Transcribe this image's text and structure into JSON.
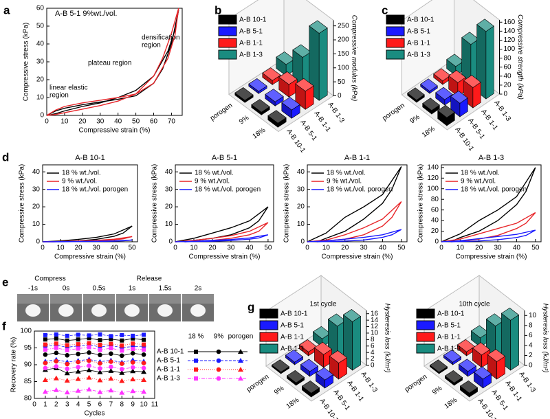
{
  "chart_data": [
    {
      "type": "line",
      "label": "a",
      "title": "A-B 5-1 9%wt./vol.",
      "xlabel": "Compressive strain (%)",
      "ylabel": "Compressive stress (kPa)",
      "xlim": [
        0,
        76
      ],
      "xticks": [
        0,
        10,
        20,
        30,
        40,
        50,
        60,
        70
      ],
      "ylim": [
        0,
        60
      ],
      "yticks": [
        0,
        10,
        20,
        30,
        40,
        50,
        60
      ],
      "annotations": [
        [
          "linear elastic",
          "region"
        ],
        [
          "plateau region"
        ],
        [
          "densification",
          "region"
        ]
      ],
      "x": [
        0,
        5,
        10,
        20,
        30,
        40,
        50,
        60,
        65,
        70,
        74,
        72,
        68,
        60,
        50,
        40,
        30,
        20,
        10,
        5,
        2,
        0
      ],
      "series": [
        {
          "color": "#000000",
          "values": [
            0,
            2.5,
            4,
            6,
            7.5,
            9,
            11,
            18,
            26,
            40,
            59,
            48,
            36,
            22,
            14,
            10,
            7,
            5,
            2.5,
            1,
            0.3,
            0
          ]
        },
        {
          "color": "#e8262a",
          "values": [
            0,
            3,
            5,
            7,
            8.5,
            10,
            12,
            22,
            32,
            46,
            60,
            45,
            32,
            18,
            12,
            8,
            5.5,
            3.5,
            1.5,
            0.5,
            0.2,
            0
          ]
        }
      ]
    },
    {
      "type": "bar3d",
      "label": "b",
      "ylabel": "Compressive modulus (kPa)",
      "categories": [
        "porogen",
        "9%",
        "18%"
      ],
      "ylim": [
        0,
        270
      ],
      "yticks": [
        0,
        50,
        100,
        150,
        200,
        250
      ],
      "series": [
        {
          "name": "A-B 10-1",
          "color": "#000000",
          "values": [
            8,
            10,
            15
          ]
        },
        {
          "name": "A-B 5-1",
          "color": "#1a1aff",
          "values": [
            8,
            15,
            30
          ]
        },
        {
          "name": "A-B 1-1",
          "color": "#ff1a1a",
          "values": [
            15,
            45,
            65
          ]
        },
        {
          "name": "A-B 1-3",
          "color": "#1a8c80",
          "values": [
            40,
            110,
            240
          ]
        }
      ]
    },
    {
      "type": "bar3d",
      "label": "c",
      "ylabel": "Compressive strength (kPa)",
      "categories": [
        "porogen",
        "9%",
        "18%"
      ],
      "ylim": [
        0,
        165
      ],
      "yticks": [
        0,
        20,
        40,
        60,
        80,
        100,
        120,
        140,
        160
      ],
      "series": [
        {
          "name": "A-B 10-1",
          "color": "#000000",
          "values": [
            5,
            8,
            18
          ]
        },
        {
          "name": "A-B 5-1",
          "color": "#1a1aff",
          "values": [
            5,
            12,
            30
          ]
        },
        {
          "name": "A-B 1-1",
          "color": "#ff1a1a",
          "values": [
            8,
            30,
            45
          ]
        },
        {
          "name": "A-B 1-3",
          "color": "#1a8c80",
          "values": [
            20,
            95,
            150
          ]
        }
      ]
    },
    {
      "type": "line",
      "label": "d",
      "title": "A-B 10-1",
      "xlabel": "Compressive strain (%)",
      "ylabel": "Compressive stress (kPa)",
      "xlim": [
        0,
        53
      ],
      "xticks": [
        0,
        10,
        20,
        30,
        40,
        50
      ],
      "ylim": [
        0,
        44
      ],
      "yticks": [
        0,
        10,
        20,
        30,
        40
      ],
      "x": [
        0,
        10,
        20,
        30,
        40,
        50,
        45,
        40,
        30,
        20,
        10,
        5
      ],
      "series": [
        {
          "name": "18 % wt./vol.",
          "color": "#000000",
          "values": [
            0,
            0.5,
            1.4,
            2.5,
            4.5,
            9,
            5,
            3.2,
            1.4,
            0.5,
            0.2,
            0
          ]
        },
        {
          "name": "9 % wt./vol.",
          "color": "#e8262a",
          "values": [
            0,
            0.2,
            0.5,
            0.8,
            1.5,
            3,
            1.7,
            1.1,
            0.5,
            0.2,
            0.1,
            0
          ]
        },
        {
          "name": "18 % wt./vol. porogen",
          "color": "#1a1aff",
          "values": [
            0,
            0.1,
            0.2,
            0.3,
            0.5,
            1,
            0.6,
            0.4,
            0.2,
            0.1,
            0,
            0
          ]
        }
      ]
    },
    {
      "type": "line",
      "title": "A-B 5-1",
      "xlabel": "Compressive strain (%)",
      "ylabel": "Compressive stress (kPa)",
      "xlim": [
        0,
        53
      ],
      "xticks": [
        0,
        10,
        20,
        30,
        40,
        50
      ],
      "ylim": [
        0,
        44
      ],
      "yticks": [
        0,
        10,
        20,
        30,
        40
      ],
      "x": [
        0,
        10,
        20,
        30,
        40,
        50,
        45,
        40,
        30,
        20,
        10,
        5
      ],
      "series": [
        {
          "name": "18 % wt./vol.",
          "color": "#000000",
          "values": [
            0,
            2,
            5,
            8,
            12,
            20,
            12,
            8,
            4,
            2,
            0.8,
            0
          ]
        },
        {
          "name": "9 % wt./vol.",
          "color": "#e8262a",
          "values": [
            0,
            0.8,
            2,
            3.5,
            6,
            11,
            6,
            4,
            2,
            0.8,
            0.3,
            0
          ]
        },
        {
          "name": "18 % wt./vol. porogen",
          "color": "#1a1aff",
          "values": [
            0,
            0.3,
            0.8,
            1.3,
            2.2,
            4,
            2.2,
            1.5,
            0.7,
            0.3,
            0.1,
            0
          ]
        }
      ]
    },
    {
      "type": "line",
      "title": "A-B 1-1",
      "xlabel": "Compressive strain (%)",
      "ylabel": "Compressive stress (kPa)",
      "xlim": [
        0,
        53
      ],
      "xticks": [
        0,
        10,
        20,
        30,
        40,
        50
      ],
      "ylim": [
        0,
        44
      ],
      "yticks": [
        0,
        10,
        20,
        30,
        40
      ],
      "x": [
        0,
        10,
        20,
        30,
        40,
        50,
        45,
        40,
        30,
        20,
        10,
        5
      ],
      "series": [
        {
          "name": "18 % wt./vol.",
          "color": "#000000",
          "values": [
            0,
            5,
            14,
            20,
            27,
            43,
            30,
            22,
            13,
            6,
            2,
            0
          ]
        },
        {
          "name": "9 % wt./vol.",
          "color": "#e8262a",
          "values": [
            0,
            1,
            4,
            8,
            13,
            23,
            14,
            9,
            4,
            1.5,
            0.5,
            0
          ]
        },
        {
          "name": "18 % wt./vol. porogen",
          "color": "#1a1aff",
          "values": [
            0,
            0.5,
            1.5,
            2.5,
            4,
            7,
            4,
            2.5,
            1,
            0.4,
            0.1,
            0
          ]
        }
      ]
    },
    {
      "type": "line",
      "title": "A-B 1-3",
      "xlabel": "Compressive strain (%)",
      "ylabel": "Compressive stress (kPa)",
      "xlim": [
        0,
        53
      ],
      "xticks": [
        0,
        10,
        20,
        30,
        40,
        50
      ],
      "ylim": [
        0,
        145
      ],
      "yticks": [
        0,
        20,
        40,
        60,
        80,
        100,
        120,
        140
      ],
      "x": [
        0,
        10,
        20,
        30,
        40,
        50,
        45,
        40,
        30,
        20,
        10,
        5
      ],
      "series": [
        {
          "name": "18 % wt./vol.",
          "color": "#000000",
          "values": [
            0,
            15,
            40,
            60,
            85,
            140,
            95,
            70,
            40,
            20,
            8,
            0
          ]
        },
        {
          "name": "9 % wt./vol.",
          "color": "#e8262a",
          "values": [
            0,
            5,
            15,
            25,
            35,
            55,
            35,
            25,
            12,
            5,
            1,
            0
          ]
        },
        {
          "name": "18 % wt./vol. porogen",
          "color": "#1a1aff",
          "values": [
            0,
            2,
            6,
            10,
            14,
            22,
            12,
            8,
            4,
            1.5,
            0.5,
            0
          ]
        }
      ]
    },
    {
      "type": "scatter",
      "label": "f",
      "xlabel": "Cycles",
      "ylabel": "Recovery rate (%)",
      "xlim": [
        0,
        11
      ],
      "xticks": [
        0,
        1,
        2,
        3,
        4,
        5,
        6,
        7,
        8,
        9,
        10,
        11
      ],
      "ylim": [
        80,
        100
      ],
      "yticks": [
        80,
        85,
        90,
        95,
        100
      ],
      "x": [
        1,
        2,
        3,
        4,
        5,
        6,
        7,
        8,
        9,
        10
      ],
      "conditions": [
        {
          "name": "18 %",
          "marker": "square"
        },
        {
          "name": "9%",
          "marker": "circle"
        },
        {
          "name": "porogen",
          "marker": "triangle"
        }
      ],
      "groups": [
        {
          "name": "A-B 10-1",
          "color": "#000000",
          "dash": "none",
          "values": [
            [
              97.5,
              97.8,
              97.2,
              97.5,
              97.9,
              97.3,
              97.6,
              97.2,
              97.8,
              97.4
            ],
            [
              93,
              93.5,
              92.8,
              93.2,
              93.6,
              92.9,
              93.3,
              92.7,
              93.4,
              93
            ],
            [
              88.5,
              89,
              87.5,
              88,
              88.4,
              87.8,
              88.2,
              87.6,
              88.1,
              87.9
            ]
          ]
        },
        {
          "name": "A-B 5-1",
          "color": "#1a1aff",
          "dash": "4 2",
          "values": [
            [
              98.8,
              99,
              98.6,
              98.9,
              98.7,
              99,
              98.5,
              98.8,
              98.6,
              98.9
            ],
            [
              95.5,
              95.8,
              95.2,
              95.6,
              95.9,
              95.3,
              95.7,
              95.1,
              95.4,
              95.5
            ],
            [
              91,
              91.5,
              90.8,
              91.2,
              91.6,
              90.9,
              91.3,
              90.7,
              91.4,
              91
            ]
          ]
        },
        {
          "name": "A-B 1-1",
          "color": "#ff1a1a",
          "dash": "1 2",
          "values": [
            [
              96,
              96.3,
              95.8,
              96.1,
              96.4,
              95.9,
              96.2,
              95.7,
              96.3,
              96
            ],
            [
              90.5,
              91,
              90.2,
              90.8,
              91.2,
              90.4,
              90.9,
              90.3,
              90.7,
              90.5
            ],
            [
              85.5,
              86,
              85.3,
              85.8,
              86.2,
              85.4,
              85.9,
              85.2,
              85.7,
              85.5
            ]
          ]
        },
        {
          "name": "A-B 1-3",
          "color": "#ff33ff",
          "dash": "5 2 1 2",
          "values": [
            [
              94.5,
              95,
              94.3,
              94.8,
              95.2,
              94.4,
              94.9,
              94.2,
              94.7,
              94.5
            ],
            [
              89,
              89.5,
              88.8,
              89.3,
              89.7,
              88.9,
              89.4,
              88.7,
              89.2,
              89
            ],
            [
              82,
              82.5,
              81.8,
              82.3,
              82.7,
              81.9,
              82.4,
              81.7,
              82.2,
              82
            ]
          ]
        }
      ]
    },
    {
      "type": "bar3d",
      "label": "g",
      "title": "1st cycle",
      "ylabel": "Hysteresis loss (kJ/m³)",
      "categories": [
        "porogen",
        "9%",
        "18%"
      ],
      "ylim": [
        0,
        17
      ],
      "yticks": [
        0,
        2,
        4,
        6,
        8,
        10,
        12,
        14,
        16
      ],
      "series": [
        {
          "name": "A-B 10-1",
          "color": "#000000",
          "values": [
            0.5,
            0.8,
            1.2
          ]
        },
        {
          "name": "A-B 5-1",
          "color": "#1a1aff",
          "values": [
            0.8,
            1.5,
            2.5
          ]
        },
        {
          "name": "A-B 1-1",
          "color": "#ff1a1a",
          "values": [
            1.2,
            4,
            5
          ]
        },
        {
          "name": "A-B 1-3",
          "color": "#1a8c80",
          "values": [
            2.5,
            10,
            15
          ]
        }
      ]
    },
    {
      "type": "bar3d",
      "title": "10th cycle",
      "ylabel": "Hysteresis loss (kJ/m³)",
      "categories": [
        "porogen",
        "9%",
        "18%"
      ],
      "ylim": [
        0,
        11
      ],
      "yticks": [
        0,
        2,
        4,
        6,
        8,
        10
      ],
      "series": [
        {
          "name": "A-B 10-1",
          "color": "#000000",
          "values": [
            0.3,
            0.5,
            0.8
          ]
        },
        {
          "name": "A-B 5-1",
          "color": "#1a1aff",
          "values": [
            0.5,
            1,
            1.8
          ]
        },
        {
          "name": "A-B 1-1",
          "color": "#ff1a1a",
          "values": [
            0.8,
            2.5,
            3.5
          ]
        },
        {
          "name": "A-B 1-3",
          "color": "#1a8c80",
          "values": [
            1.8,
            6.5,
            10
          ]
        }
      ]
    }
  ],
  "photo_strip": {
    "label": "e",
    "phases": [
      {
        "name": "Compress",
        "color": "#000000",
        "times": [
          "-1s",
          "0s"
        ]
      },
      {
        "name": "Release",
        "color": "#e8262a",
        "times": [
          "0.5s",
          "1s",
          "1.5s",
          "2s"
        ]
      }
    ]
  }
}
